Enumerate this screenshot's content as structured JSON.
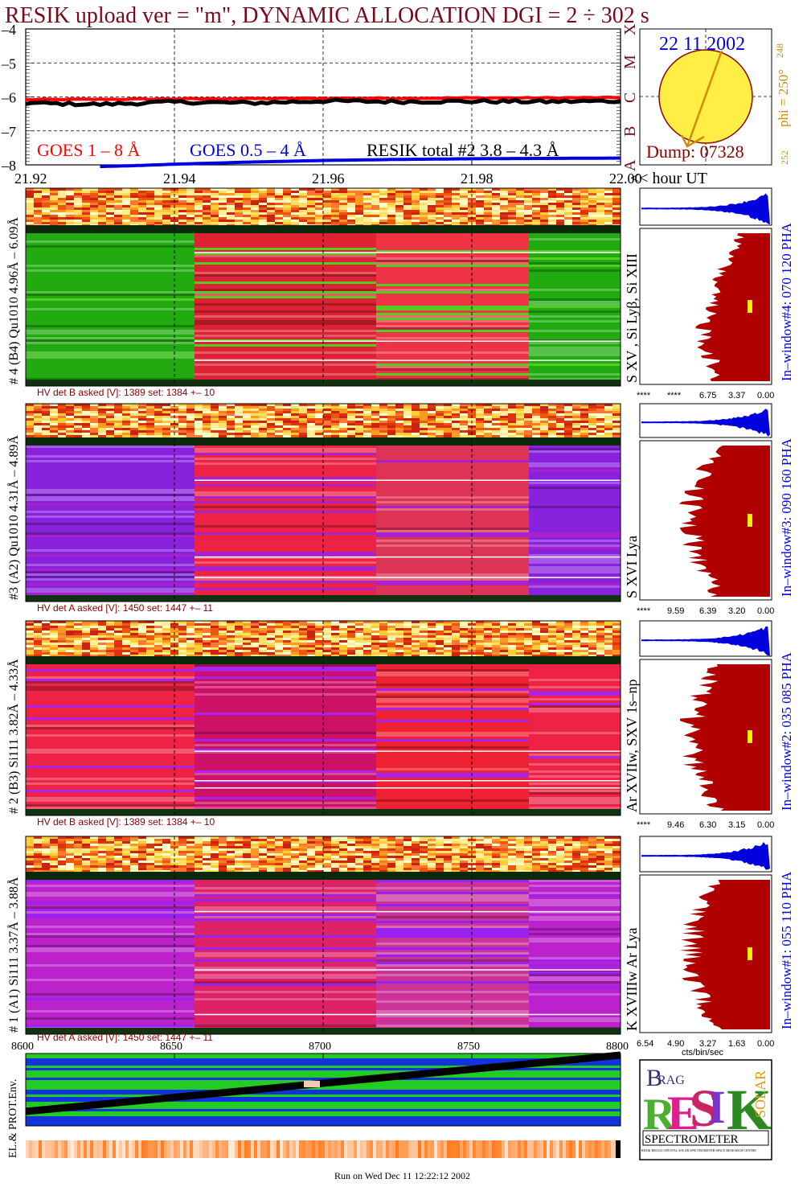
{
  "title": "RESIK upload ver = \"m\", DYNAMIC ALLOCATION  DGI =   2 ÷ 302 s",
  "footer": "Run on Wed Dec 11 12:22:12 2002",
  "colors": {
    "title": "#7a0a1a",
    "goes_long": "#ff0000",
    "goes_short": "#0000e0",
    "resik_total": "#000000",
    "sun_disk": "#ffee44",
    "sun_border": "#8b0000",
    "pha_red": "#b00000",
    "pha_blue": "#0000dd",
    "hv_text": "#8b0000",
    "bar_green": "#22cc22",
    "bar_blue": "#1133dd",
    "phi_text": "#d28c00"
  },
  "sun_panel": {
    "date": "22 11 2002",
    "dump": "Dump: 07328",
    "phi": "phi = 250°",
    "phi_sup": "248",
    "phi_sub": "252",
    "goes_class_letters": [
      "A",
      "B",
      "C",
      "M",
      "X"
    ]
  },
  "bottom_panel": {
    "ylabel": "EL.& PROT.Env."
  },
  "logo": {
    "letters": [
      "R",
      "E",
      "S",
      "I",
      "K"
    ],
    "top_words": [
      "B",
      "RAG",
      "G"
    ],
    "side_word": "SOLAR",
    "bottom": "SPECTROMETER",
    "fine_print": "RESIK BRAGG CRYSTAL SOLAR SPECTROMETER SPACE RESEARCH CENTRE POLISH ACADEMY OF SCIENCES MULLARD SPACE SCIENCE LABORATORY RUTHERFORD APPLETON LABORATORY NAVAL RESEARCH LABORATORY CORONAS-F MISSION"
  },
  "chart_data": [
    {
      "type": "line",
      "title": "",
      "xlabel": "<< hour UT",
      "ylabel": "",
      "xlim": [
        21.92,
        22.0
      ],
      "ylim": [
        -8,
        -4
      ],
      "x_ticks": [
        "21.92",
        "21.94",
        "21.96",
        "21.98",
        "22.00"
      ],
      "y_ticks": [
        "-4",
        "-5",
        "-6",
        "-7",
        "-8"
      ],
      "grid": true,
      "series": [
        {
          "name": "GOES 1 – 8 Å",
          "color": "#ff0000",
          "x": [
            21.92,
            21.93,
            21.94,
            21.95,
            21.96,
            21.97,
            21.98,
            21.99,
            22.0
          ],
          "values": [
            -6.08,
            -6.07,
            -6.06,
            -6.05,
            -6.04,
            -6.04,
            -6.03,
            -6.03,
            -6.02
          ]
        },
        {
          "name": "GOES 0.5 – 4 Å",
          "color": "#0000e0",
          "x": [
            21.93,
            21.935,
            21.94,
            21.95,
            21.96,
            21.97,
            21.98,
            21.99,
            22.0
          ],
          "values": [
            -8.05,
            -8.02,
            -7.98,
            -7.92,
            -7.87,
            -7.84,
            -7.82,
            -7.81,
            -7.8
          ]
        },
        {
          "name": "RESIK total #2  3.8 – 4.3 Å",
          "color": "#000000",
          "x": [
            21.92,
            21.93,
            21.94,
            21.95,
            21.96,
            21.97,
            21.98,
            21.99,
            22.0
          ],
          "values": [
            -6.18,
            -6.22,
            -6.15,
            -6.18,
            -6.12,
            -6.14,
            -6.13,
            -6.14,
            -6.12
          ]
        }
      ]
    },
    {
      "type": "heatmap",
      "title": "",
      "ylabel": "# 4 (B4) Qu1010 4.96Å – 6.09Å",
      "line_label": "S XV , Si Lyβ, Si XIII",
      "hv": "HV det B asked [V]:  1389 set:  1384 +–   10",
      "window": "In–window#4:  070 120 PHA",
      "pha_ticks": [
        "****",
        "****",
        "6.75",
        "3.37",
        "0.00"
      ],
      "grid": true
    },
    {
      "type": "heatmap",
      "title": "",
      "ylabel": "#3 (A2) Qu1010  4.31Å – 4.89Å",
      "line_label": "S XVI Lya",
      "hv": "HV det A asked [V]:  1450 set:  1447 +–   11",
      "window": "In–window#3:  090 160 PHA",
      "pha_ticks": [
        "****",
        "9.59",
        "6.39",
        "3.20",
        "0.00"
      ],
      "grid": true
    },
    {
      "type": "heatmap",
      "title": "",
      "ylabel": "# 2 (B3) Si111  3.82Å – 4.33Å",
      "line_label": "Ar XVIIw,  SXV 1s–np",
      "hv": "HV det B asked [V]:  1389 set:  1384 +–   10",
      "window": "In–window#2:  035 085 PHA",
      "pha_ticks": [
        "****",
        "9.46",
        "6.30",
        "3.15",
        "0.00"
      ],
      "grid": true
    },
    {
      "type": "heatmap",
      "title": "",
      "ylabel": "# 1 (A1) Si111  3.37Å – 3.88Å",
      "line_label": "K XVIIIw  Ar Lya",
      "hv": "HV det A asked [V]:  1450 set:  1447 +–   11",
      "window": "In–window#1:  055 110 PHA",
      "pha_ticks": [
        "6.54",
        "4.90",
        "3.27",
        "1.63",
        "0.00"
      ],
      "pha_xlabel": "cts/bin/sec",
      "grid": true
    },
    {
      "type": "line",
      "title": "",
      "xlabel": "",
      "ylabel": "EL.& PROT.Env.",
      "xlim": [
        8600,
        8800
      ],
      "x_ticks": [
        "8600",
        "8650",
        "8700",
        "8750",
        "8800"
      ],
      "grid": false
    }
  ]
}
